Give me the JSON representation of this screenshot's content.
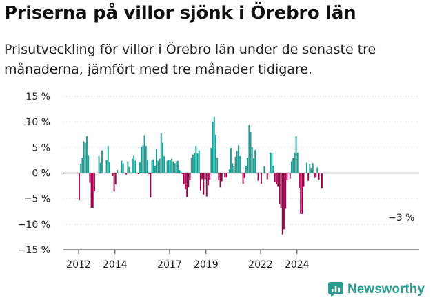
{
  "header": {
    "title": "Priserna på villor sjönk i Örebro län",
    "subtitle": "Prisutveckling för villor i Örebro län under de senaste tre månaderna, jämfört med tre månader tidigare."
  },
  "brand": {
    "name": "Newsworthy"
  },
  "colors": {
    "positive": "#1a9e93",
    "negative": "#a0004a",
    "grid": "#dddddd",
    "text": "#222222"
  },
  "chart_data": {
    "type": "bar",
    "title": "Priserna på villor sjönk i Örebro län",
    "xlabel": "",
    "ylabel": "",
    "ylim": [
      -15,
      15
    ],
    "y_ticks": [
      15,
      10,
      5,
      0,
      -5,
      -10,
      -15
    ],
    "y_tick_labels": [
      "15 %",
      "10 %",
      "5 %",
      "0 %",
      "−5 %",
      "−10 %",
      "−15 %"
    ],
    "x_ticks": [
      2012,
      2014,
      2017,
      2019,
      2022,
      2024
    ],
    "x_tick_labels": [
      "2012",
      "2014",
      "2017",
      "2019",
      "2022",
      "2024"
    ],
    "start_year": 2012,
    "months_per_bar": 1,
    "annotation": {
      "text": "−3 %",
      "value": -3
    },
    "values": [
      -5.3,
      1.8,
      3.0,
      6.2,
      5.9,
      7.2,
      3.4,
      -1.9,
      -6.8,
      -6.8,
      -3.6,
      0,
      0,
      3.3,
      2.0,
      4.4,
      0,
      0,
      2.5,
      5.3,
      2.1,
      0,
      -0.6,
      -3.6,
      -2.2,
      0.6,
      0,
      0,
      2.4,
      1.9,
      0,
      -0.3,
      2.3,
      1.2,
      0,
      2.8,
      3.4,
      2.4,
      0,
      -0.2,
      2.1,
      5.1,
      5.4,
      7.4,
      5.3,
      2.6,
      -0.2,
      -4.8,
      2.5,
      2.7,
      1.4,
      4.7,
      2.4,
      2.8,
      7.8,
      5.9,
      3.3,
      0,
      2.4,
      2.6,
      2.6,
      2.8,
      2.3,
      1.9,
      2.3,
      2.4,
      0.6,
      0.5,
      -0.2,
      -2.2,
      -3.2,
      -4.7,
      -2.8,
      -1.4,
      3.0,
      3.6,
      3.9,
      5.3,
      3.8,
      4.4,
      -3.4,
      -1.2,
      -4.2,
      -1.2,
      -4.6,
      -2.4,
      -1.3,
      4.9,
      10.0,
      11.0,
      7.5,
      3.0,
      -1.4,
      -2.8,
      -1.6,
      0,
      -0.9,
      -0.9,
      0,
      0.7,
      4.9,
      1.9,
      1.4,
      3.2,
      4.3,
      5.4,
      3.3,
      0,
      -2.1,
      -1.0,
      1.4,
      3.0,
      9.4,
      8.0,
      5.1,
      2.9,
      4.5,
      0,
      -1.5,
      0,
      -2.1,
      0,
      1.3,
      0,
      -1.2,
      0,
      4.0,
      4.0,
      1.4,
      -1.7,
      -2.2,
      -2.7,
      -6.0,
      -6.9,
      -12.0,
      -11.0,
      -7.0,
      -1.4,
      0,
      -1.1,
      2.3,
      2.9,
      4.0,
      7.2,
      4.0,
      -2.9,
      -8.0,
      -8.0,
      -2.7,
      0,
      2.0,
      -1.5,
      1.8,
      1.0,
      1.9,
      -1.0,
      -0.9,
      1.1,
      -1.3,
      0,
      -3.0
    ]
  }
}
